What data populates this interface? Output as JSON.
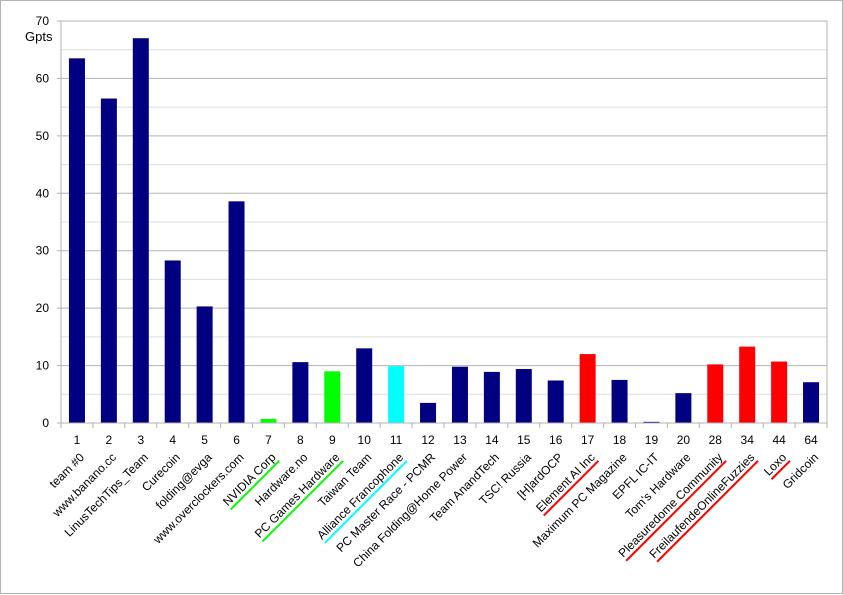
{
  "chart_data": {
    "type": "bar",
    "title": "",
    "xlabel": "",
    "ylabel": "Gpts",
    "ylim": [
      0,
      70
    ],
    "y_major_step": 10,
    "y_minor_step": 5,
    "grid": true,
    "legend": "none",
    "colors": {
      "default": "#000080",
      "green": "#00ff00",
      "cyan": "#00ffff",
      "red": "#ff0000",
      "grid": "#b3b3b3",
      "axis": "#b3b3b3"
    },
    "categories": [
      "1",
      "2",
      "3",
      "4",
      "5",
      "6",
      "7",
      "8",
      "9",
      "10",
      "11",
      "12",
      "13",
      "14",
      "15",
      "16",
      "17",
      "18",
      "19",
      "20",
      "28",
      "34",
      "44",
      "64"
    ],
    "team_names": [
      "team #0",
      "www.banano.cc",
      "LinusTechTips_Team",
      "Curecoin",
      "folding@evga",
      "www.overclockers.com",
      "NVIDIA Corp",
      "Hardware.no",
      "PC Games Hardware",
      "Taiwan Team",
      "Alliance Francophone",
      "PC Master Race - PCMR",
      "China Folding@Home Power",
      "Team AnandTech",
      "TSC! Russia",
      "[H]ardOCP",
      "Element AI Inc",
      "Maximum PC Magazine",
      "EPFL IC-IT",
      "Tom's Hardware",
      "Pleasuredome Community",
      "FreilaufendeOnlineFuzzies",
      "Loxo",
      "Gridcoin"
    ],
    "values": [
      63.5,
      56.5,
      67,
      28.3,
      20.3,
      38.6,
      0.7,
      10.6,
      9,
      13,
      9.9,
      3.5,
      9.8,
      8.9,
      9.4,
      7.4,
      12,
      7.5,
      0.2,
      5.2,
      10.2,
      13.3,
      10.7,
      7.1
    ],
    "bar_colors": [
      "default",
      "default",
      "default",
      "default",
      "default",
      "default",
      "green",
      "default",
      "green",
      "default",
      "cyan",
      "default",
      "default",
      "default",
      "default",
      "default",
      "red",
      "default",
      "default",
      "default",
      "red",
      "red",
      "red",
      "default"
    ],
    "underline_colors": [
      null,
      null,
      null,
      null,
      null,
      null,
      "green",
      null,
      "green",
      null,
      "cyan",
      null,
      null,
      null,
      null,
      null,
      "red",
      null,
      null,
      null,
      "red",
      "red",
      "red",
      null
    ]
  }
}
